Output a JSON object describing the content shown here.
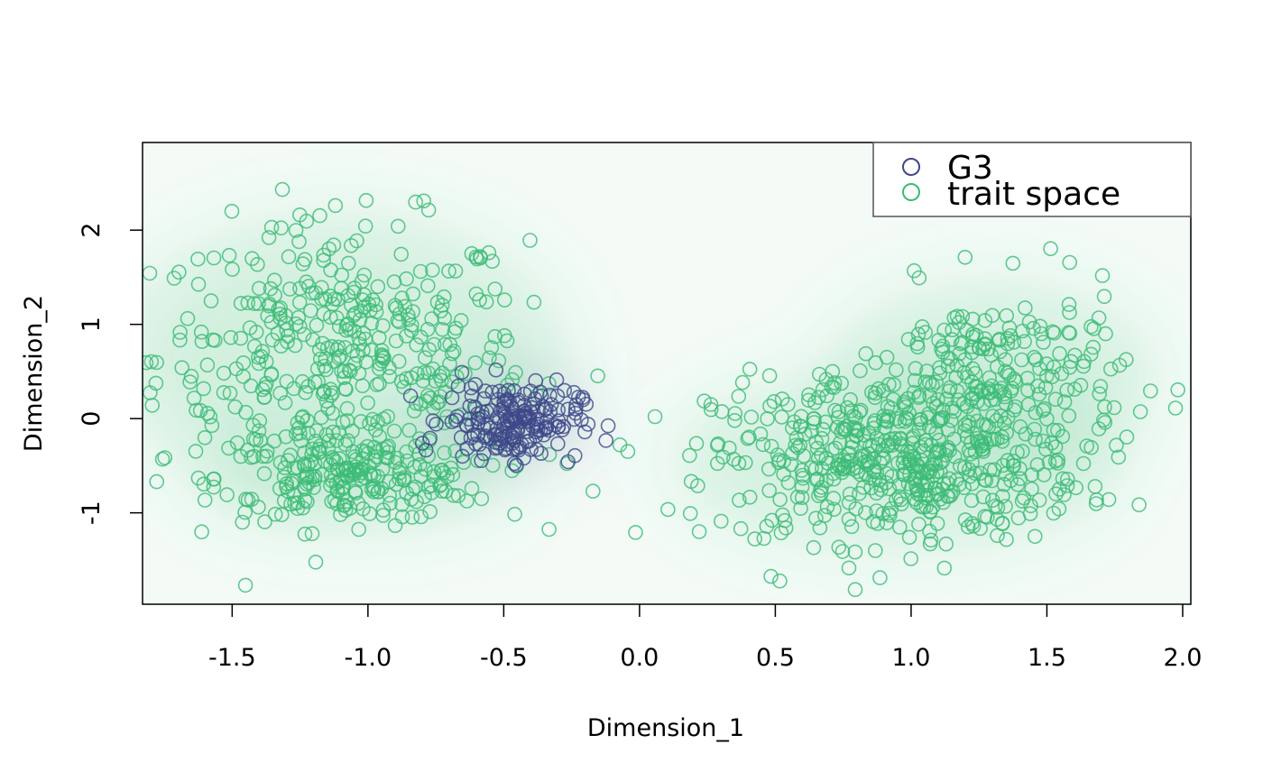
{
  "chart_data": {
    "type": "scatter",
    "title": "",
    "xlabel": "Dimension_1",
    "ylabel": "Dimension_2",
    "xlim": [
      -1.83,
      2.03
    ],
    "ylim": [
      -1.97,
      2.93
    ],
    "x_ticks": [
      "-1.5",
      "-1.0",
      "-0.5",
      "0.0",
      "0.5",
      "1.0",
      "1.5",
      "2.0"
    ],
    "y_ticks": [
      "-1",
      "0",
      "1",
      "2"
    ],
    "grid": false,
    "legend_position": "top-right",
    "background": "density-shading",
    "series": [
      {
        "name": "G3",
        "color": "#3f4788",
        "marker": "open-circle",
        "clusters": [
          {
            "center": [
              -0.47,
              -0.02
            ],
            "spread": [
              0.2,
              0.33
            ],
            "count": 190
          }
        ]
      },
      {
        "name": "trait space",
        "color": "#3cbb75",
        "marker": "open-circle",
        "clusters": [
          {
            "center": [
              -1.1,
              0.65
            ],
            "spread": [
              0.55,
              1.15
            ],
            "count": 420
          },
          {
            "center": [
              -1.05,
              -0.65
            ],
            "spread": [
              0.4,
              0.35
            ],
            "count": 200
          },
          {
            "center": [
              0.95,
              -0.45
            ],
            "spread": [
              0.55,
              0.7
            ],
            "count": 520
          },
          {
            "center": [
              1.3,
              0.45
            ],
            "spread": [
              0.4,
              0.75
            ],
            "count": 200
          }
        ]
      }
    ]
  }
}
